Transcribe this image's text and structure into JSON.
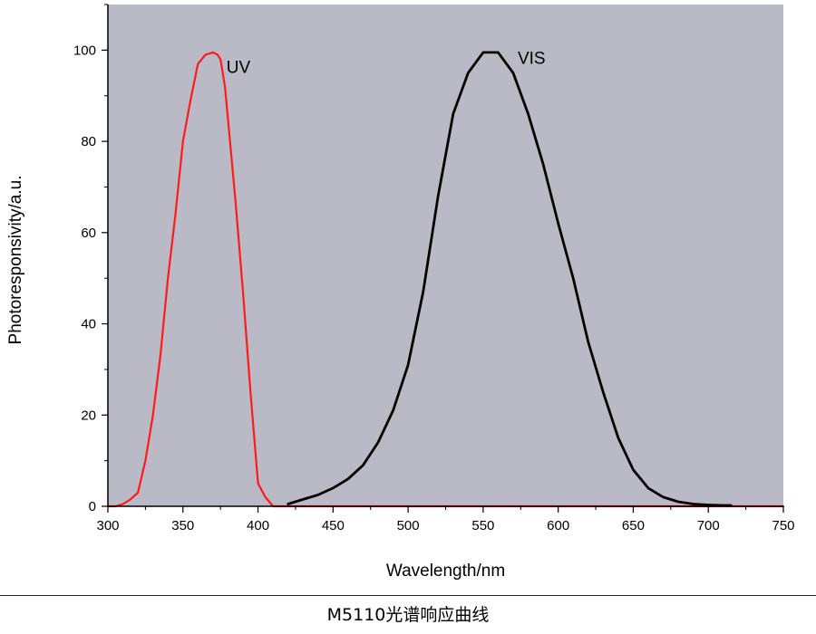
{
  "caption": "M5110光谱响应曲线",
  "chart_data": {
    "type": "line",
    "xlabel": "Wavelength/nm",
    "ylabel": "Photoresponsivity/a.u.",
    "xlim": [
      300,
      750
    ],
    "ylim": [
      0,
      110
    ],
    "xticks": [
      300,
      350,
      400,
      450,
      500,
      550,
      600,
      650,
      700,
      750
    ],
    "yticks": [
      0,
      20,
      40,
      60,
      80,
      100
    ],
    "grid": false,
    "plot_background": "#b9bac6",
    "series": [
      {
        "name": "UV",
        "color": "#ff1a1a",
        "x": [
          300,
          305,
          310,
          315,
          320,
          325,
          330,
          335,
          340,
          345,
          350,
          355,
          360,
          365,
          370,
          373,
          375,
          378,
          380,
          385,
          390,
          395,
          400,
          405,
          410,
          420,
          500,
          600,
          700,
          750
        ],
        "y": [
          0,
          0,
          0.5,
          1.5,
          3,
          10,
          20,
          33,
          50,
          64,
          80,
          89,
          97,
          99,
          99.5,
          99,
          98,
          92,
          85,
          67,
          47,
          25,
          5,
          2,
          0,
          0,
          0,
          0,
          0,
          0
        ]
      },
      {
        "name": "VIS",
        "color": "#000000",
        "x": [
          420,
          430,
          440,
          450,
          460,
          470,
          480,
          490,
          500,
          510,
          520,
          530,
          540,
          550,
          560,
          570,
          580,
          590,
          600,
          610,
          620,
          630,
          640,
          650,
          660,
          670,
          680,
          690,
          700,
          710,
          715
        ],
        "y": [
          0.5,
          1.5,
          2.5,
          4,
          6,
          9,
          14,
          21,
          31,
          47,
          68,
          86,
          95,
          99.5,
          99.5,
          95,
          86,
          75,
          62,
          50,
          36,
          25,
          15,
          8,
          4,
          2,
          1,
          0.5,
          0.3,
          0.2,
          0.2
        ]
      }
    ]
  }
}
